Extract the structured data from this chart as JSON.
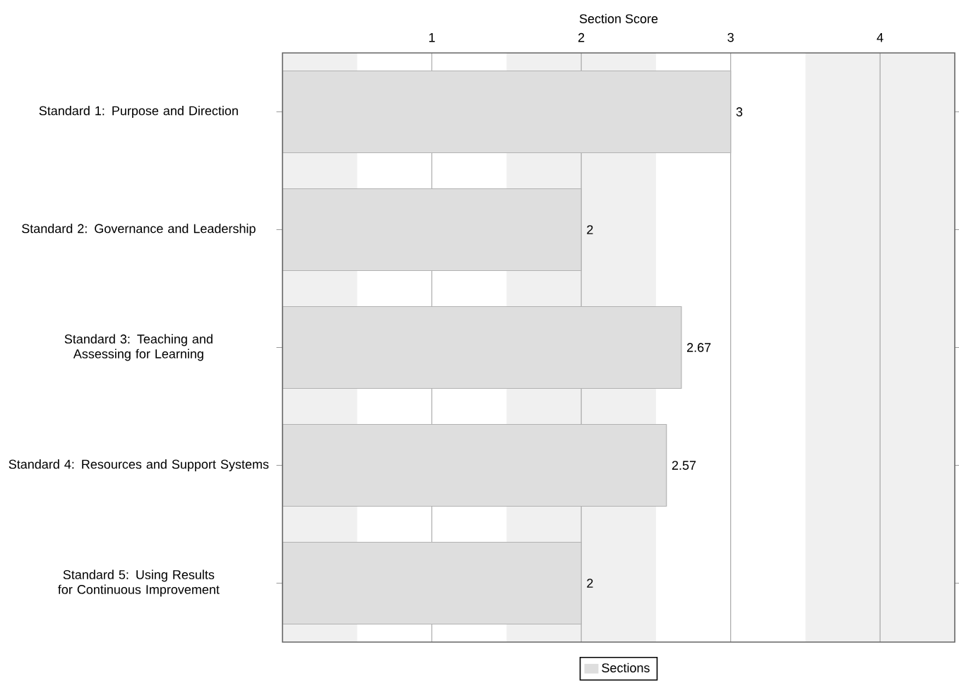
{
  "chart_data": {
    "type": "bar",
    "orientation": "horizontal",
    "xlabel": "Section Score",
    "categories": [
      "Standard 1: Purpose and Direction",
      "Standard 2: Governance and Leadership",
      "Standard 3: Teaching and Assessing for Learning",
      "Standard 4: Resources and Support Systems",
      "Standard 5: Using Results for Continuous Improvement"
    ],
    "series": [
      {
        "name": "Sections",
        "color": "#dedede",
        "values": [
          3,
          2,
          2.67,
          2.57,
          2
        ]
      }
    ],
    "xlim": [
      0,
      4.5
    ],
    "xticks": [
      1,
      2,
      3,
      4
    ],
    "grid": "x",
    "data_labels": true,
    "legend": "bottom",
    "bands": [
      {
        "axis": "x",
        "from": 0,
        "to": 0.5,
        "color": "#f0f0f0"
      },
      {
        "axis": "x",
        "from": 1.5,
        "to": 2.5,
        "color": "#f0f0f0"
      },
      {
        "axis": "x",
        "from": 3.5,
        "to": 4.5,
        "color": "#f0f0f0"
      }
    ]
  }
}
